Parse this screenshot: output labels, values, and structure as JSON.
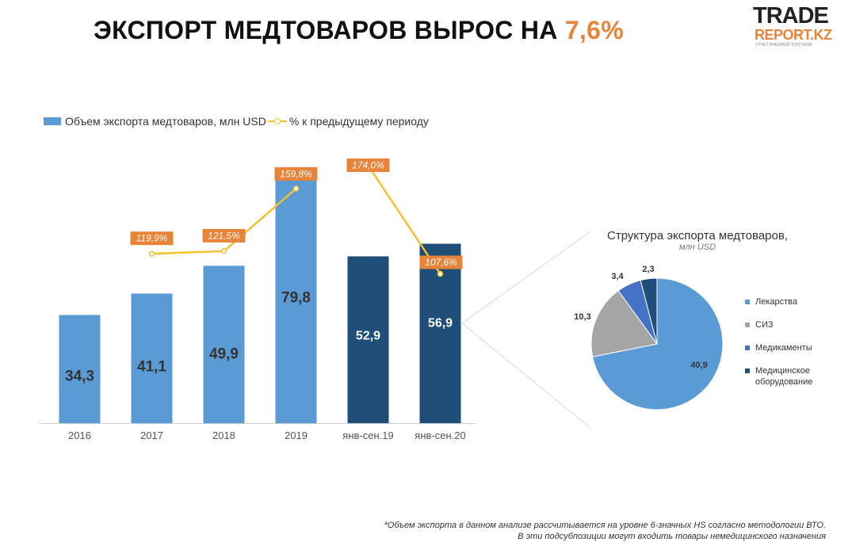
{
  "header": {
    "title": "ЭКСПОРТ МЕДТОВАРОВ ВЫРОС НА",
    "title_accent": "7,6%"
  },
  "logo": {
    "line1": "TRADE",
    "line2": "REPORT.KZ",
    "tagline": "ОТЧЁТ ВНЕШНЕЙ ТОРГОВЛИ"
  },
  "chart_data": [
    {
      "type": "bar",
      "categories": [
        "2016",
        "2017",
        "2018",
        "2019",
        "янв-сен.19",
        "янв-сен.20"
      ],
      "series": [
        {
          "name": "Объем экспорта медтоваров, млн USD",
          "values": [
            34.3,
            41.1,
            49.9,
            79.8,
            52.9,
            56.9
          ],
          "labels": [
            "34,3",
            "41,1",
            "49,9",
            "79,8",
            "52,9",
            "56,9"
          ],
          "colors": [
            "#5b9bd5",
            "#5b9bd5",
            "#5b9bd5",
            "#5b9bd5",
            "#1f4e79",
            "#1f4e79"
          ]
        },
        {
          "name": "% к предыдущему периоду",
          "type": "line",
          "values": [
            null,
            119.9,
            121.5,
            159.8,
            174.0,
            107.6
          ],
          "labels": [
            "",
            "119,9%",
            "121,5%",
            "159,8%",
            "174,0%",
            "107,6%"
          ],
          "segments": [
            [
              1,
              2,
              3
            ],
            [
              4,
              5
            ]
          ],
          "color": "#f2c12e",
          "label_color": "#e8833a"
        }
      ],
      "legend_position": "top-left",
      "grid": false
    },
    {
      "type": "pie",
      "title": "Структура экспорта медтоваров,",
      "subtitle": "млн USD",
      "slices": [
        {
          "label": "Лекарства",
          "value": 40.9,
          "display": "40,9",
          "color": "#5b9bd5"
        },
        {
          "label": "СИЗ",
          "value": 10.3,
          "display": "10,3",
          "color": "#a5a5a5"
        },
        {
          "label": "Медикаменты",
          "value": 3.4,
          "display": "3,4",
          "color": "#4472c4"
        },
        {
          "label": "Медицинское оборудование",
          "value": 2.3,
          "display": "2,3",
          "color": "#1f4e79"
        }
      ],
      "legend_position": "right"
    }
  ],
  "footnote": {
    "line1": "*Объем экспорта в данном анализе рассчитывается на уровне 6-значных HS согласно методологии ВТО.",
    "line2": "В эти подсубпозиции могут входить товары немедицинского назначения"
  }
}
